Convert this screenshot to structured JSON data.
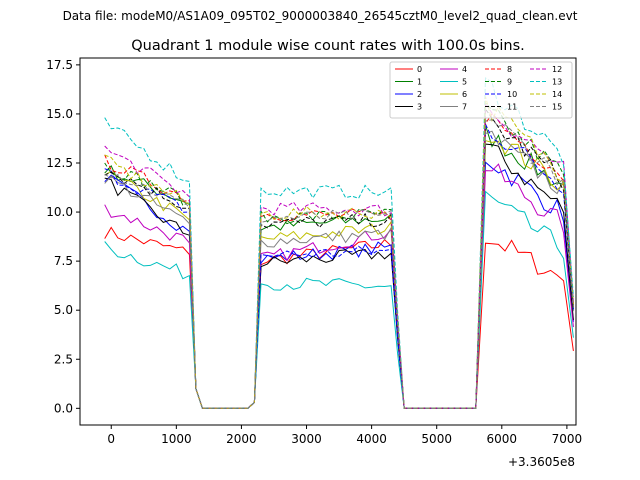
{
  "chart_data": {
    "type": "line",
    "header": "Data file: modeM0/AS1A09_095T02_9000003840_26545cztM0_level2_quad_clean.evt",
    "title": "Quadrant 1 module wise count rates with 100.0s bins.",
    "xlabel": "",
    "ylabel": "",
    "x_offset_label": "+3.3605e8",
    "xlim": [
      -480,
      7140
    ],
    "ylim": [
      -0.85,
      17.85
    ],
    "xticks": [
      0,
      1000,
      2000,
      3000,
      4000,
      5000,
      6000,
      7000
    ],
    "xtick_labels": [
      "0",
      "1000",
      "2000",
      "3000",
      "4000",
      "5000",
      "6000",
      "7000"
    ],
    "yticks": [
      0.0,
      2.5,
      5.0,
      7.5,
      10.0,
      12.5,
      15.0,
      17.5
    ],
    "ytick_labels": [
      "0.0",
      "2.5",
      "5.0",
      "7.5",
      "10.0",
      "12.5",
      "15.0",
      "17.5"
    ],
    "legend_placement": "top-right",
    "segments": [
      {
        "start": -100,
        "end": 1200,
        "step": 100
      },
      {
        "start": 1200,
        "end": 2200,
        "step": 100
      },
      {
        "start": 2200,
        "end": 4400,
        "step": 100
      },
      {
        "start": 4400,
        "end": 5800,
        "step": 100
      },
      {
        "start": 5800,
        "end": 7100,
        "step": 100
      }
    ],
    "series": [
      {
        "name": "0",
        "color": "#ff0000",
        "dash": "solid",
        "levels": [
          9.0,
          8.0,
          7.5,
          8.4,
          8.8,
          6.5
        ]
      },
      {
        "name": "1",
        "color": "#008000",
        "dash": "solid",
        "levels": [
          12.2,
          10.6,
          9.2,
          9.7,
          14.0,
          11.2
        ]
      },
      {
        "name": "2",
        "color": "#0000ff",
        "dash": "solid",
        "levels": [
          11.8,
          9.2,
          7.6,
          8.2,
          12.8,
          9.8
        ]
      },
      {
        "name": "3",
        "color": "#000000",
        "dash": "solid",
        "levels": [
          11.6,
          9.0,
          7.4,
          7.9,
          13.4,
          10.0
        ]
      },
      {
        "name": "4",
        "color": "#bf00bf",
        "dash": "solid",
        "levels": [
          10.2,
          8.6,
          7.6,
          9.0,
          12.4,
          9.2
        ]
      },
      {
        "name": "5",
        "color": "#00bfbf",
        "dash": "solid",
        "levels": [
          8.2,
          6.9,
          6.4,
          6.2,
          10.8,
          8.0
        ]
      },
      {
        "name": "6",
        "color": "#bfbf00",
        "dash": "solid",
        "levels": [
          12.0,
          9.8,
          8.6,
          9.2,
          14.2,
          11.2
        ]
      },
      {
        "name": "7",
        "color": "#808080",
        "dash": "solid",
        "levels": [
          11.8,
          9.6,
          8.5,
          8.9,
          14.0,
          11.0
        ]
      },
      {
        "name": "8",
        "color": "#ff0000",
        "dash": "dashed",
        "levels": [
          12.6,
          10.8,
          9.9,
          9.8,
          15.0,
          11.8
        ]
      },
      {
        "name": "9",
        "color": "#008000",
        "dash": "dashed",
        "levels": [
          12.4,
          10.7,
          9.7,
          9.9,
          15.2,
          11.8
        ]
      },
      {
        "name": "10",
        "color": "#0000ff",
        "dash": "dashed",
        "levels": [
          12.0,
          10.2,
          7.8,
          8.0,
          14.4,
          11.2
        ]
      },
      {
        "name": "11",
        "color": "#000000",
        "dash": "dashed",
        "levels": [
          12.2,
          10.4,
          9.4,
          9.6,
          14.8,
          11.5
        ]
      },
      {
        "name": "12",
        "color": "#bf00bf",
        "dash": "dashed",
        "levels": [
          13.2,
          11.0,
          10.2,
          10.1,
          15.4,
          12.0
        ]
      },
      {
        "name": "13",
        "color": "#00bfbf",
        "dash": "dashed",
        "levels": [
          14.5,
          11.8,
          11.1,
          11.0,
          16.6,
          12.6
        ]
      },
      {
        "name": "14",
        "color": "#bfbf00",
        "dash": "dashed",
        "levels": [
          12.6,
          10.6,
          9.9,
          10.0,
          15.5,
          11.8
        ]
      },
      {
        "name": "15",
        "color": "#808080",
        "dash": "dashed",
        "levels": [
          12.2,
          10.4,
          9.7,
          9.8,
          15.0,
          11.5
        ]
      }
    ]
  }
}
